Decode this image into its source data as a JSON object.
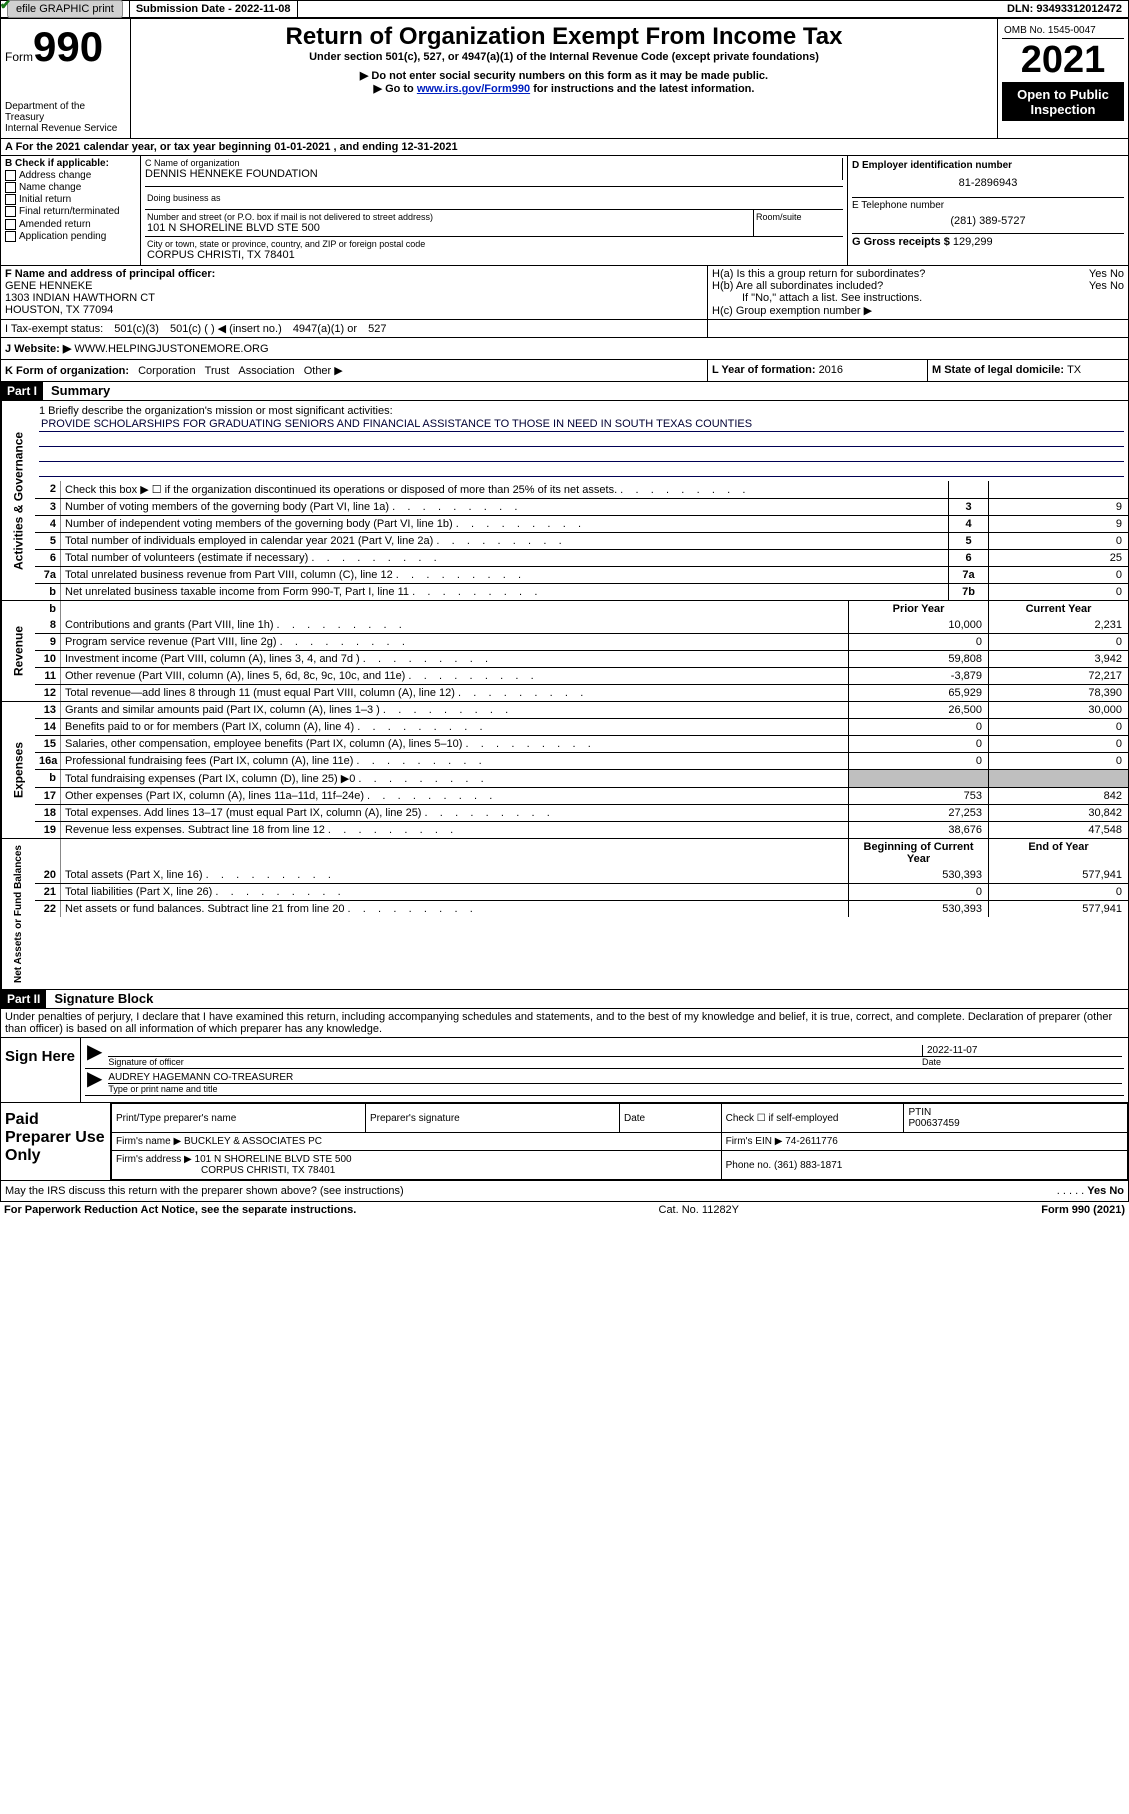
{
  "topbar": {
    "efile": "efile GRAPHIC print",
    "subdate_lbl": "Submission Date - ",
    "subdate": "2022-11-08",
    "dln_lbl": "DLN: ",
    "dln": "93493312012472"
  },
  "hdr": {
    "form_prefix": "Form",
    "form_no": "990",
    "dept": "Department of the Treasury\nInternal Revenue Service",
    "title": "Return of Organization Exempt From Income Tax",
    "sub": "Under section 501(c), 527, or 4947(a)(1) of the Internal Revenue Code (except private foundations)",
    "instr1": "▶ Do not enter social security numbers on this form as it may be made public.",
    "instr2_pre": "▶ Go to ",
    "instr2_link": "www.irs.gov/Form990",
    "instr2_post": " for instructions and the latest information.",
    "omb": "OMB No. 1545-0047",
    "year": "2021",
    "open": "Open to Public Inspection"
  },
  "rowA": "A For the 2021 calendar year, or tax year beginning 01-01-2021    , and ending 12-31-2021",
  "B": {
    "hdr": "B Check if applicable:",
    "items": [
      "Address change",
      "Name change",
      "Initial return",
      "Final return/terminated",
      "Amended return",
      "Application pending"
    ]
  },
  "C": {
    "name_lbl": "C Name of organization",
    "name": "DENNIS HENNEKE FOUNDATION",
    "dba_lbl": "Doing business as",
    "dba": "",
    "addr_lbl": "Number and street (or P.O. box if mail is not delivered to street address)",
    "room_lbl": "Room/suite",
    "addr": "101 N SHORELINE BLVD STE 500",
    "city_lbl": "City or town, state or province, country, and ZIP or foreign postal code",
    "city": "CORPUS CHRISTI, TX  78401"
  },
  "D": {
    "ein_lbl": "D Employer identification number",
    "ein": "81-2896943",
    "phone_lbl": "E Telephone number",
    "phone": "(281) 389-5727",
    "gross_lbl": "G Gross receipts $ ",
    "gross": "129,299"
  },
  "F": {
    "lbl": "F  Name and address of principal officer:",
    "name": "GENE HENNEKE",
    "addr1": "1303 INDIAN HAWTHORN CT",
    "addr2": "HOUSTON, TX  77094"
  },
  "H": {
    "a": "H(a)  Is this a group return for subordinates?",
    "a_yes": "Yes",
    "a_no": "No",
    "a_val": "No",
    "b": "H(b)  Are all subordinates included?",
    "b_yes": "Yes",
    "b_no": "No",
    "b_note": "If \"No,\" attach a list. See instructions.",
    "c": "H(c)  Group exemption number ▶"
  },
  "I": {
    "lbl": "I   Tax-exempt status:",
    "opts": [
      "501(c)(3)",
      "501(c) (  ) ◀ (insert no.)",
      "4947(a)(1) or",
      "527"
    ],
    "checked": 0
  },
  "J": {
    "lbl": "J   Website: ▶ ",
    "val": "WWW.HELPINGJUSTONEMORE.ORG"
  },
  "K": {
    "lbl": "K Form of organization:",
    "opts": [
      "Corporation",
      "Trust",
      "Association",
      "Other ▶"
    ],
    "checked": 0
  },
  "L": {
    "lbl": "L Year of formation: ",
    "val": "2016"
  },
  "M": {
    "lbl": "M State of legal domicile: ",
    "val": "TX"
  },
  "partI": {
    "hdr": "Part I",
    "title": "Summary"
  },
  "mission": {
    "prompt": "1  Briefly describe the organization's mission or most significant activities:",
    "text": "PROVIDE SCHOLARSHIPS FOR GRADUATING SENIORS AND FINANCIAL ASSISTANCE TO THOSE IN NEED IN SOUTH TEXAS COUNTIES"
  },
  "gov_rows": [
    {
      "n": "2",
      "t": "Check this box ▶ ☐  if the organization discontinued its operations or disposed of more than 25% of its net assets.",
      "c1": "",
      "v": ""
    },
    {
      "n": "3",
      "t": "Number of voting members of the governing body (Part VI, line 1a)",
      "c1": "3",
      "v": "9"
    },
    {
      "n": "4",
      "t": "Number of independent voting members of the governing body (Part VI, line 1b)",
      "c1": "4",
      "v": "9"
    },
    {
      "n": "5",
      "t": "Total number of individuals employed in calendar year 2021 (Part V, line 2a)",
      "c1": "5",
      "v": "0"
    },
    {
      "n": "6",
      "t": "Total number of volunteers (estimate if necessary)",
      "c1": "6",
      "v": "25"
    },
    {
      "n": "7a",
      "t": "Total unrelated business revenue from Part VIII, column (C), line 12",
      "c1": "7a",
      "v": "0"
    },
    {
      "n": "b",
      "t": "Net unrelated business taxable income from Form 990-T, Part I, line 11",
      "c1": "7b",
      "v": "0"
    }
  ],
  "rev_hdr": {
    "prior": "Prior Year",
    "curr": "Current Year"
  },
  "rev_rows": [
    {
      "n": "8",
      "t": "Contributions and grants (Part VIII, line 1h)",
      "p": "10,000",
      "c": "2,231"
    },
    {
      "n": "9",
      "t": "Program service revenue (Part VIII, line 2g)",
      "p": "0",
      "c": "0"
    },
    {
      "n": "10",
      "t": "Investment income (Part VIII, column (A), lines 3, 4, and 7d )",
      "p": "59,808",
      "c": "3,942"
    },
    {
      "n": "11",
      "t": "Other revenue (Part VIII, column (A), lines 5, 6d, 8c, 9c, 10c, and 11e)",
      "p": "-3,879",
      "c": "72,217"
    },
    {
      "n": "12",
      "t": "Total revenue—add lines 8 through 11 (must equal Part VIII, column (A), line 12)",
      "p": "65,929",
      "c": "78,390"
    }
  ],
  "exp_rows": [
    {
      "n": "13",
      "t": "Grants and similar amounts paid (Part IX, column (A), lines 1–3 )",
      "p": "26,500",
      "c": "30,000"
    },
    {
      "n": "14",
      "t": "Benefits paid to or for members (Part IX, column (A), line 4)",
      "p": "0",
      "c": "0"
    },
    {
      "n": "15",
      "t": "Salaries, other compensation, employee benefits (Part IX, column (A), lines 5–10)",
      "p": "0",
      "c": "0"
    },
    {
      "n": "16a",
      "t": "Professional fundraising fees (Part IX, column (A), line 11e)",
      "p": "0",
      "c": "0"
    },
    {
      "n": "b",
      "t": "Total fundraising expenses (Part IX, column (D), line 25) ▶0",
      "p": "__gray__",
      "c": "__gray__"
    },
    {
      "n": "17",
      "t": "Other expenses (Part IX, column (A), lines 11a–11d, 11f–24e)",
      "p": "753",
      "c": "842"
    },
    {
      "n": "18",
      "t": "Total expenses. Add lines 13–17 (must equal Part IX, column (A), line 25)",
      "p": "27,253",
      "c": "30,842"
    },
    {
      "n": "19",
      "t": "Revenue less expenses. Subtract line 18 from line 12",
      "p": "38,676",
      "c": "47,548"
    }
  ],
  "na_hdr": {
    "prior": "Beginning of Current Year",
    "curr": "End of Year"
  },
  "na_rows": [
    {
      "n": "20",
      "t": "Total assets (Part X, line 16)",
      "p": "530,393",
      "c": "577,941"
    },
    {
      "n": "21",
      "t": "Total liabilities (Part X, line 26)",
      "p": "0",
      "c": "0"
    },
    {
      "n": "22",
      "t": "Net assets or fund balances. Subtract line 21 from line 20",
      "p": "530,393",
      "c": "577,941"
    }
  ],
  "vlabels": {
    "gov": "Activities & Governance",
    "rev": "Revenue",
    "exp": "Expenses",
    "na": "Net Assets or Fund Balances"
  },
  "partII": {
    "hdr": "Part II",
    "title": "Signature Block"
  },
  "sig_decl": "Under penalties of perjury, I declare that I have examined this return, including accompanying schedules and statements, and to the best of my knowledge and belief, it is true, correct, and complete. Declaration of preparer (other than officer) is based on all information of which preparer has any knowledge.",
  "sign": {
    "lbl": "Sign Here",
    "sig_of_officer": "Signature of officer",
    "date_lbl": "Date",
    "date": "2022-11-07",
    "name": "AUDREY HAGEMANN  CO-TREASURER",
    "name_lbl": "Type or print name and title"
  },
  "prep": {
    "lbl": "Paid Preparer Use Only",
    "r1": {
      "a": "Print/Type preparer's name",
      "b": "Preparer's signature",
      "c": "Date",
      "d_lbl": "Check ☐ if self-employed",
      "e_lbl": "PTIN",
      "e": "P00637459"
    },
    "r2": {
      "a_lbl": "Firm's name      ▶",
      "a": "BUCKLEY & ASSOCIATES PC",
      "b_lbl": "Firm's EIN ▶",
      "b": "74-2611776"
    },
    "r3": {
      "a_lbl": "Firm's address ▶",
      "a": "101 N SHORELINE BLVD STE 500",
      "a2": "CORPUS CHRISTI, TX  78401",
      "b_lbl": "Phone no.",
      "b": "(361) 883-1871"
    }
  },
  "foot": {
    "q": "May the IRS discuss this return with the preparer shown above? (see instructions)",
    "yes": "Yes",
    "no": "No",
    "val": "No",
    "pra": "For Paperwork Reduction Act Notice, see the separate instructions.",
    "cat": "Cat. No. 11282Y",
    "form": "Form 990 (2021)"
  },
  "colors": {
    "link": "#0020c0",
    "check": "#1a7a1a",
    "gray": "#bfbfbf",
    "black": "#000000"
  }
}
